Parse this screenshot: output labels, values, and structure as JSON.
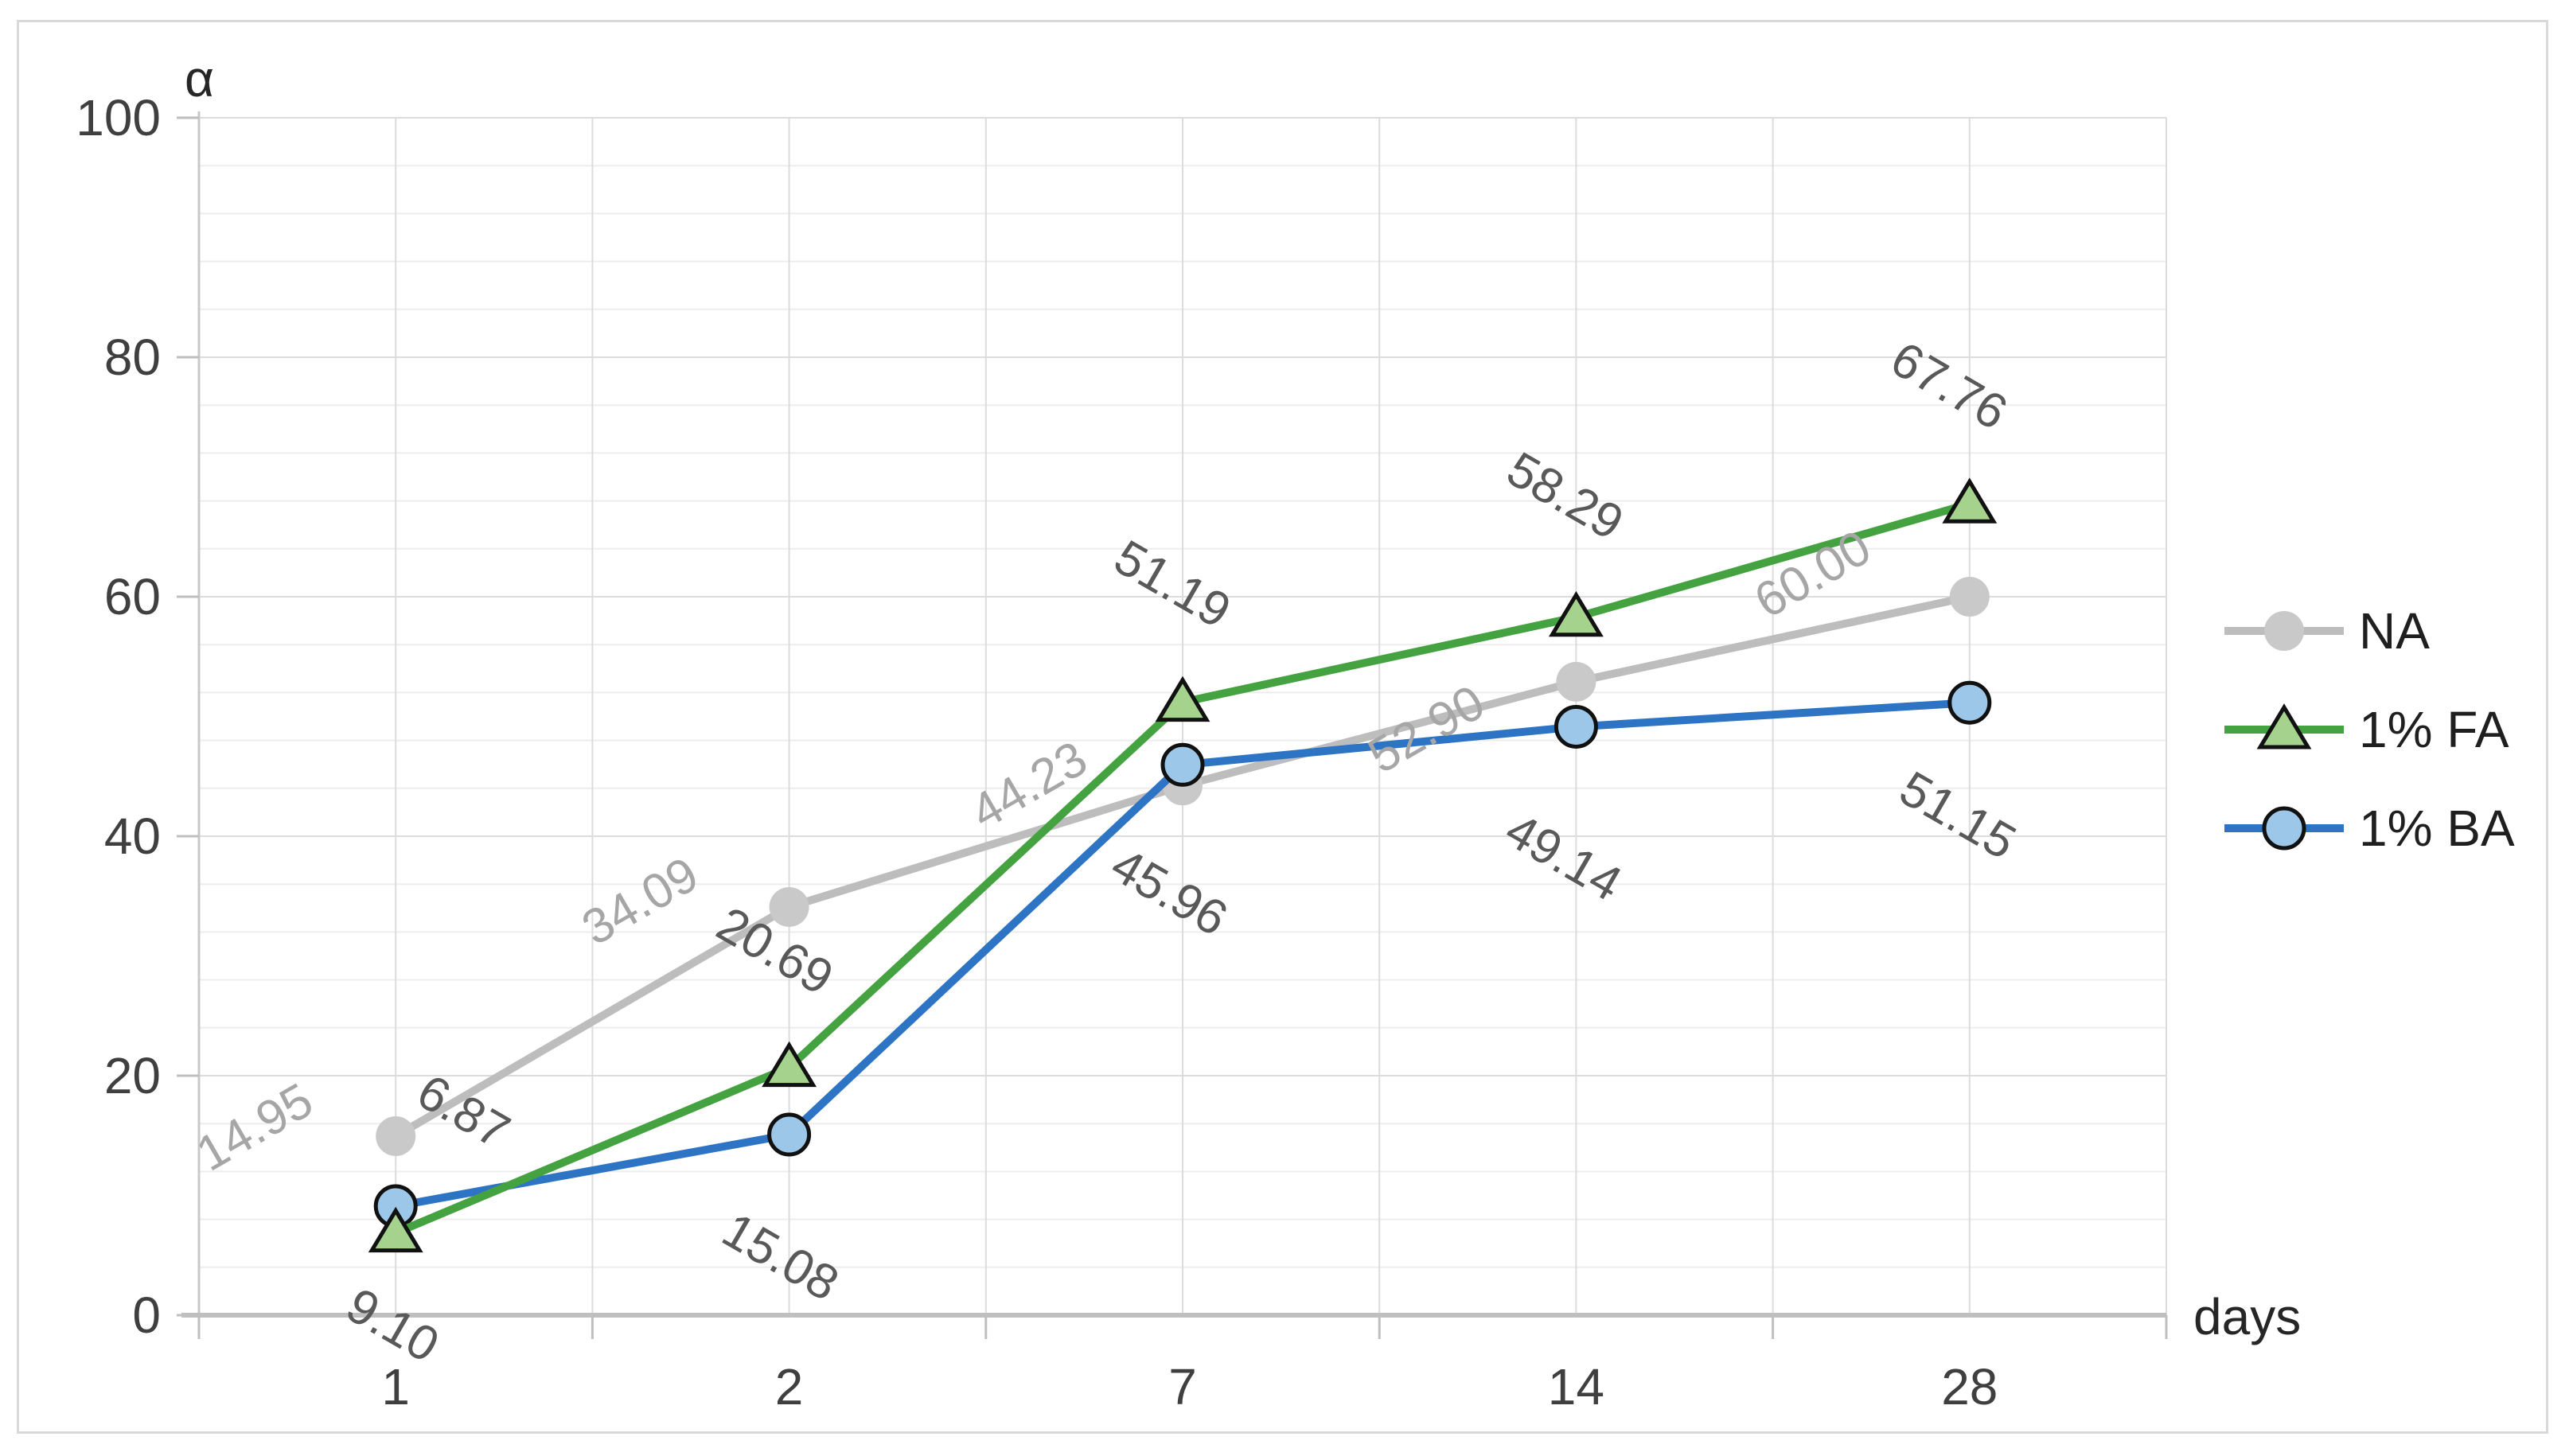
{
  "chart_data": {
    "type": "line",
    "title": "",
    "xlabel": "days",
    "ylabel": "α",
    "categories": [
      "1",
      "2",
      "7",
      "14",
      "28"
    ],
    "ylim": [
      0,
      100
    ],
    "y_major_unit": 20,
    "y_minor_unit": 4,
    "y_tick_labels": [
      "0",
      "20",
      "40",
      "60",
      "80",
      "100"
    ],
    "grid": {
      "major_h": true,
      "minor_h": true,
      "vertical": true,
      "major_color": "#DCDCDC",
      "minor_color": "#EDEDED",
      "axis_line_color": "#BFBFBF",
      "tick_color": "#BFBFBF",
      "frame_color": "#D9D9D9"
    },
    "legend_position": "right",
    "series": [
      {
        "name": "NA",
        "values": [
          14.95,
          34.09,
          44.23,
          52.9,
          60.0
        ],
        "labels": [
          "14.95",
          "34.09",
          "44.23",
          "52.90",
          "60.00"
        ],
        "line_color": "#BDBDBD",
        "marker": "circle",
        "marker_fill": "#C9C9C9",
        "marker_stroke": "none",
        "label_color": "#A6A6A6",
        "label_rotation": -30,
        "label_side": "left"
      },
      {
        "name": "1% FA",
        "values": [
          6.87,
          20.69,
          51.19,
          58.29,
          67.76
        ],
        "labels": [
          "6.87",
          "20.69",
          "51.19",
          "58.29",
          "67.76"
        ],
        "line_color": "#44A340",
        "marker": "triangle",
        "marker_fill": "#A5D28C",
        "marker_stroke": "#111111",
        "label_color": "#595959",
        "label_rotation": 30,
        "label_side": "above"
      },
      {
        "name": "1% BA",
        "values": [
          9.1,
          15.08,
          45.96,
          49.14,
          51.15
        ],
        "labels": [
          "9.10",
          "15.08",
          "45.96",
          "49.14",
          "51.15"
        ],
        "line_color": "#2E74C4",
        "marker": "circle",
        "marker_fill": "#9CC7E8",
        "marker_stroke": "#111111",
        "label_color": "#595959",
        "label_rotation": 30,
        "label_side": "below"
      }
    ],
    "tick_label_color": "#3F3F3F"
  }
}
